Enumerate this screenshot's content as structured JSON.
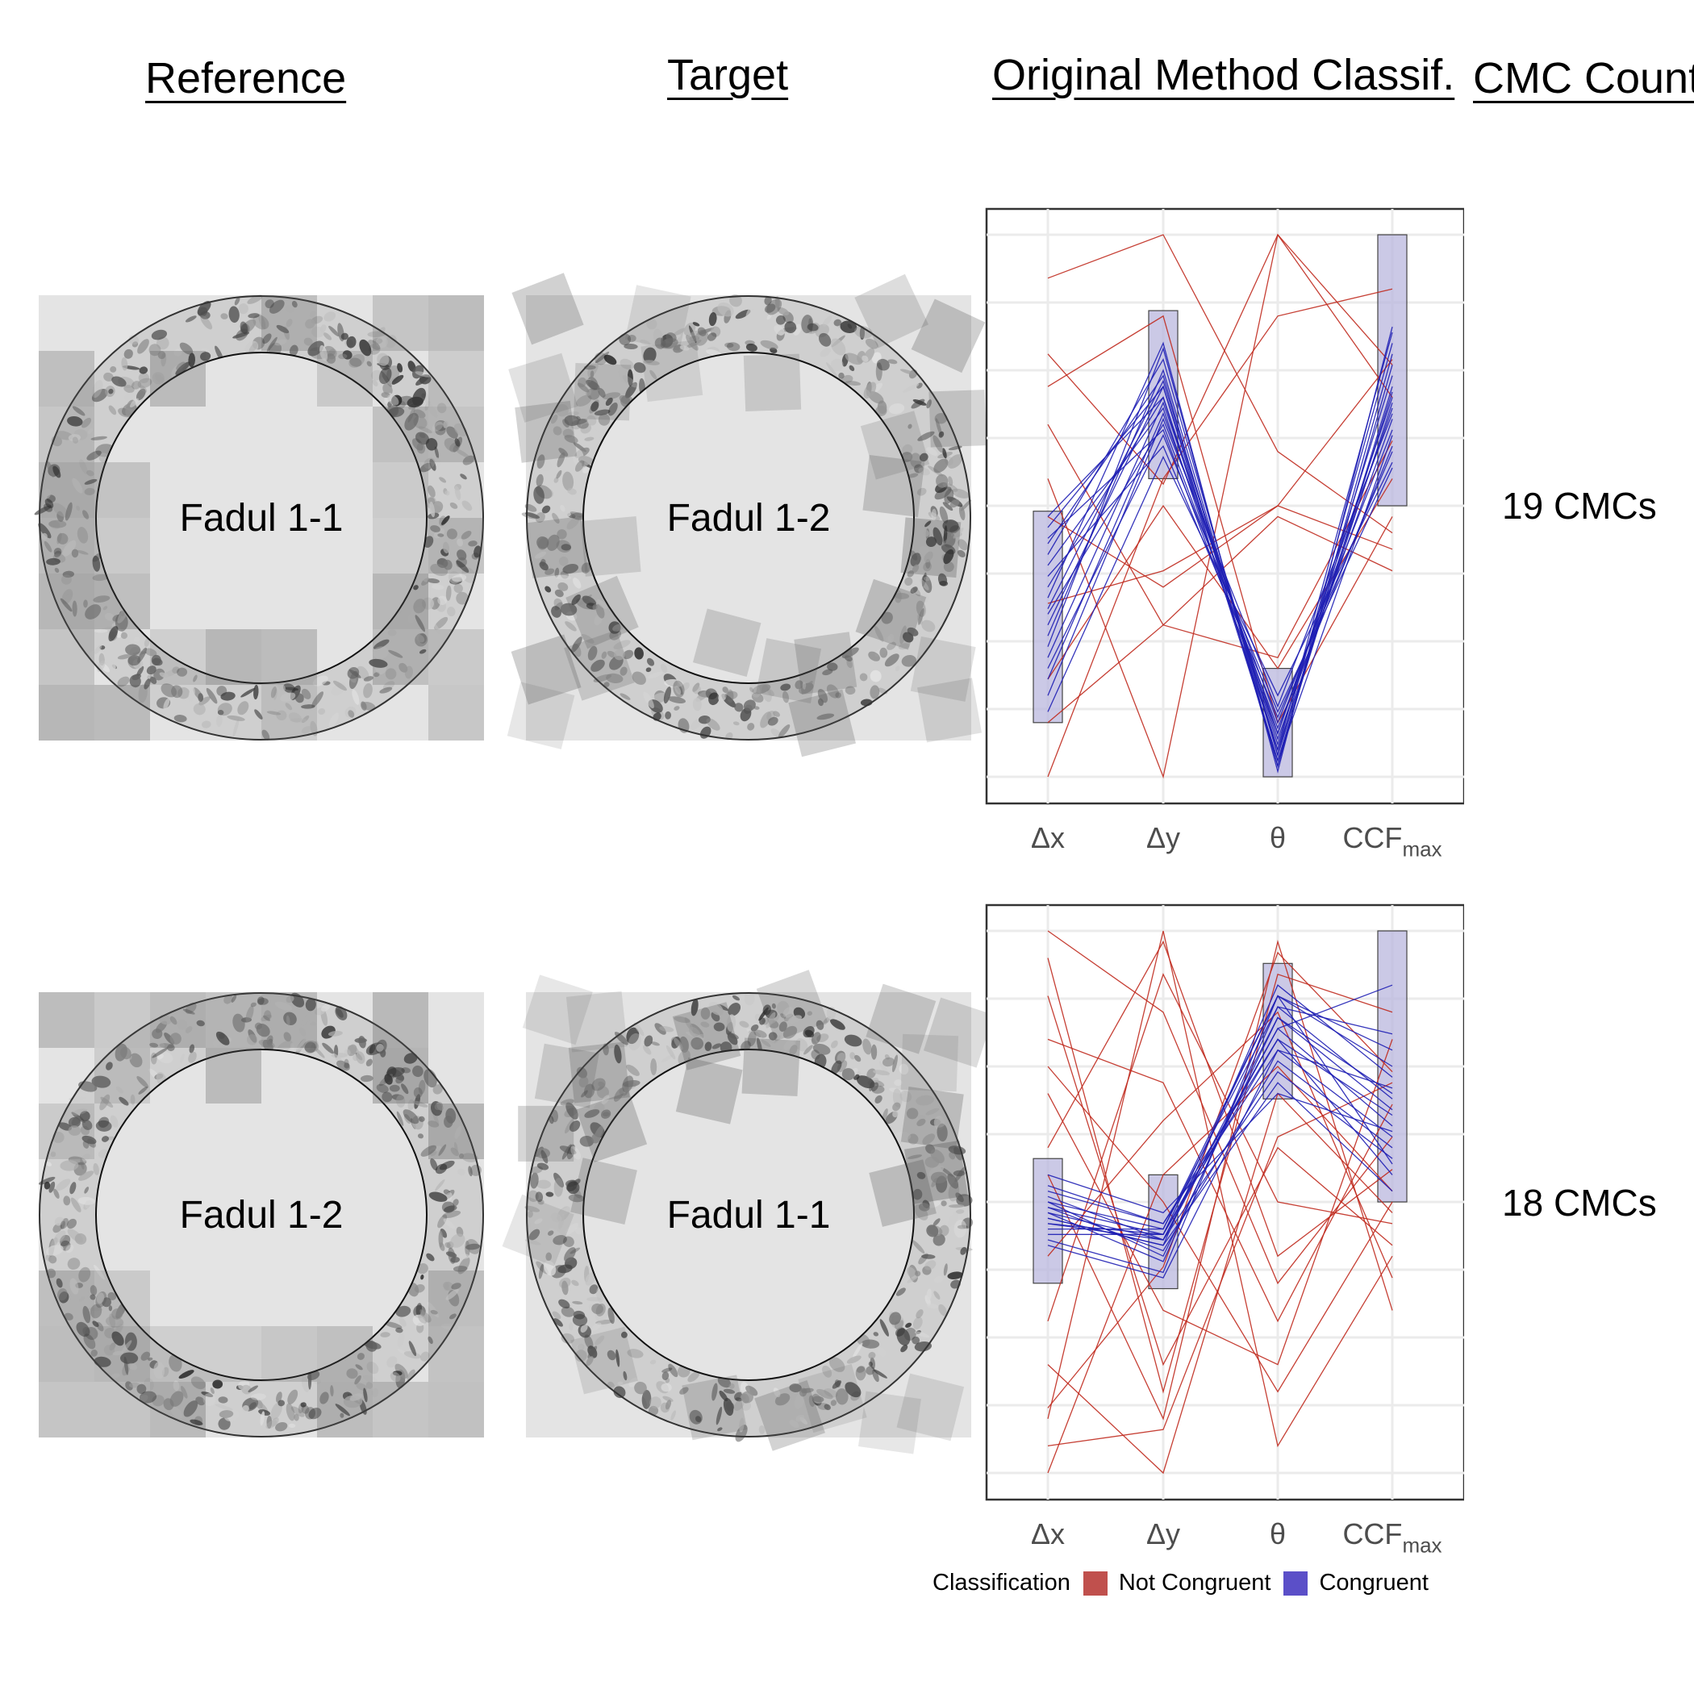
{
  "headers": {
    "reference": "Reference",
    "target": "Target",
    "classification": "Original Method Classif.",
    "cmc_count": "CMC Count"
  },
  "rows": [
    {
      "reference_label": "Fadul 1-1",
      "target_label": "Fadul 1-2",
      "cmc_text": "19 CMCs"
    },
    {
      "reference_label": "Fadul 1-2",
      "target_label": "Fadul 1-1",
      "cmc_text": "18 CMCs"
    }
  ],
  "colors": {
    "not_congruent": "#C0504D",
    "congruent": "#5B4FC8",
    "congruent_line": "#1f1fb4",
    "not_congruent_line": "#c02a1e",
    "box_fill": "#b9b7dd",
    "panel_bg": "#e4e4e4"
  },
  "legend": {
    "title": "Classification",
    "items": [
      "Not Congruent",
      "Congruent"
    ]
  },
  "chart_data": [
    {
      "type": "parallel-coordinates",
      "axes": [
        "Δx",
        "Δy",
        "θ",
        "CCFmax"
      ],
      "ylim": [
        0,
        1
      ],
      "grid": true,
      "boxes": [
        [
          0.1,
          0.49
        ],
        [
          0.55,
          0.86
        ],
        [
          0.0,
          0.2
        ],
        [
          0.5,
          1.0
        ]
      ],
      "series": [
        {
          "name": "Congruent",
          "lines": [
            [
              0.46,
              0.72,
              0.03,
              0.72
            ],
            [
              0.39,
              0.68,
              0.05,
              0.69
            ],
            [
              0.43,
              0.74,
              0.02,
              0.78
            ],
            [
              0.35,
              0.7,
              0.07,
              0.66
            ],
            [
              0.3,
              0.65,
              0.09,
              0.61
            ],
            [
              0.26,
              0.75,
              0.04,
              0.8
            ],
            [
              0.22,
              0.69,
              0.08,
              0.7
            ],
            [
              0.2,
              0.63,
              0.12,
              0.57
            ],
            [
              0.33,
              0.8,
              0.01,
              0.83
            ],
            [
              0.28,
              0.72,
              0.06,
              0.74
            ],
            [
              0.18,
              0.67,
              0.1,
              0.64
            ],
            [
              0.41,
              0.77,
              0.04,
              0.71
            ],
            [
              0.37,
              0.61,
              0.11,
              0.6
            ],
            [
              0.15,
              0.66,
              0.13,
              0.67
            ],
            [
              0.48,
              0.7,
              0.03,
              0.63
            ],
            [
              0.24,
              0.79,
              0.02,
              0.76
            ],
            [
              0.12,
              0.59,
              0.15,
              0.58
            ],
            [
              0.31,
              0.73,
              0.05,
              0.82
            ],
            [
              0.44,
              0.64,
              0.08,
              0.68
            ]
          ]
        },
        {
          "name": "Not Congruent",
          "lines": [
            [
              0.92,
              1.0,
              0.6,
              0.45
            ],
            [
              0.78,
              0.54,
              1.0,
              0.7
            ],
            [
              0.65,
              0.28,
              0.48,
              0.38
            ],
            [
              0.0,
              0.55,
              0.85,
              0.9
            ],
            [
              0.55,
              0.0,
              1.0,
              0.76
            ],
            [
              0.32,
              0.38,
              0.5,
              0.42
            ],
            [
              0.1,
              0.28,
              0.22,
              0.62
            ],
            [
              0.72,
              0.85,
              0.1,
              0.48
            ],
            [
              0.18,
              0.5,
              0.2,
              0.55
            ],
            [
              0.48,
              0.35,
              0.5,
              0.77
            ]
          ]
        }
      ]
    },
    {
      "type": "parallel-coordinates",
      "axes": [
        "Δx",
        "Δy",
        "θ",
        "CCFmax"
      ],
      "ylim": [
        0,
        1
      ],
      "grid": true,
      "boxes": [
        [
          0.35,
          0.58
        ],
        [
          0.34,
          0.55
        ],
        [
          0.69,
          0.94
        ],
        [
          0.5,
          1.0
        ]
      ],
      "series": [
        {
          "name": "Congruent",
          "lines": [
            [
              0.5,
              0.45,
              0.88,
              0.75
            ],
            [
              0.48,
              0.43,
              0.84,
              0.7
            ],
            [
              0.46,
              0.44,
              0.8,
              0.66
            ],
            [
              0.52,
              0.46,
              0.78,
              0.62
            ],
            [
              0.47,
              0.42,
              0.9,
              0.73
            ],
            [
              0.45,
              0.45,
              0.86,
              0.69
            ],
            [
              0.51,
              0.43,
              0.82,
              0.64
            ],
            [
              0.49,
              0.41,
              0.76,
              0.6
            ],
            [
              0.44,
              0.44,
              0.88,
              0.78
            ],
            [
              0.53,
              0.46,
              0.8,
              0.55
            ],
            [
              0.47,
              0.42,
              0.72,
              0.52
            ],
            [
              0.5,
              0.4,
              0.84,
              0.67
            ],
            [
              0.46,
              0.43,
              0.74,
              0.58
            ],
            [
              0.48,
              0.39,
              0.86,
              0.81
            ],
            [
              0.42,
              0.36,
              0.78,
              0.71
            ],
            [
              0.55,
              0.48,
              0.7,
              0.63
            ],
            [
              0.49,
              0.44,
              0.82,
              0.9
            ],
            [
              0.43,
              0.37,
              0.88,
              0.57
            ]
          ]
        },
        {
          "name": "Not Congruent",
          "lines": [
            [
              1.0,
              0.85,
              0.35,
              0.62
            ],
            [
              0.2,
              0.0,
              0.7,
              0.48
            ],
            [
              0.95,
              0.15,
              0.92,
              0.85
            ],
            [
              0.1,
              1.0,
              0.05,
              0.4
            ],
            [
              0.0,
              0.55,
              0.75,
              0.52
            ],
            [
              0.8,
              0.72,
              0.28,
              0.68
            ],
            [
              0.55,
              0.1,
              0.98,
              0.3
            ],
            [
              0.28,
              0.92,
              0.5,
              0.46
            ],
            [
              0.7,
              0.3,
              0.2,
              0.8
            ],
            [
              0.4,
              0.65,
              0.85,
              0.36
            ],
            [
              0.12,
              0.38,
              0.96,
              0.74
            ],
            [
              0.88,
              0.2,
              0.6,
              0.42
            ],
            [
              0.6,
              0.98,
              0.4,
              0.56
            ],
            [
              0.05,
              0.08,
              0.62,
              0.72
            ],
            [
              0.75,
              0.5,
              0.15,
              0.5
            ]
          ]
        }
      ]
    }
  ]
}
